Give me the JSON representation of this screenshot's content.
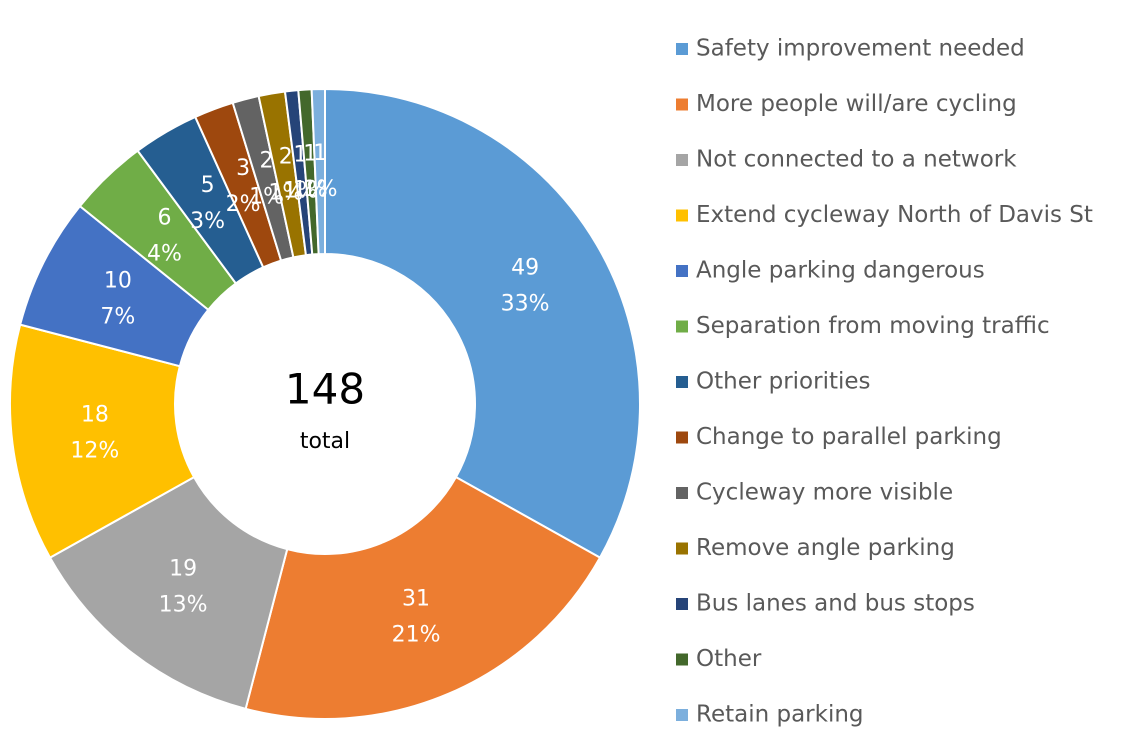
{
  "chart_data": {
    "type": "donut",
    "categories": [
      "Safety improvement needed",
      "More people will/are cycling",
      "Not connected to a network",
      "Extend cycleway North of Davis St",
      "Angle parking dangerous",
      "Separation from moving traffic",
      "Other priorities",
      "Change to parallel parking",
      "Cycleway more visible",
      "Remove angle parking",
      "Bus lanes and bus stops",
      "Other",
      "Retain parking"
    ],
    "values": [
      49,
      31,
      19,
      18,
      10,
      6,
      5,
      3,
      2,
      2,
      1,
      1,
      1
    ],
    "percent_labels": [
      "33%",
      "21%",
      "13%",
      "12%",
      "7%",
      "4%",
      "3%",
      "2%",
      "1%",
      "1%",
      "1%",
      "1%",
      "1%"
    ],
    "colors": [
      "#5b9bd5",
      "#ed7d31",
      "#a5a5a5",
      "#ffc000",
      "#4472c4",
      "#70ad47",
      "#255e91",
      "#9e480e",
      "#636363",
      "#997300",
      "#264478",
      "#43682b",
      "#7cafdd"
    ],
    "total_value": 148,
    "total_label": "total",
    "legend": "right"
  }
}
